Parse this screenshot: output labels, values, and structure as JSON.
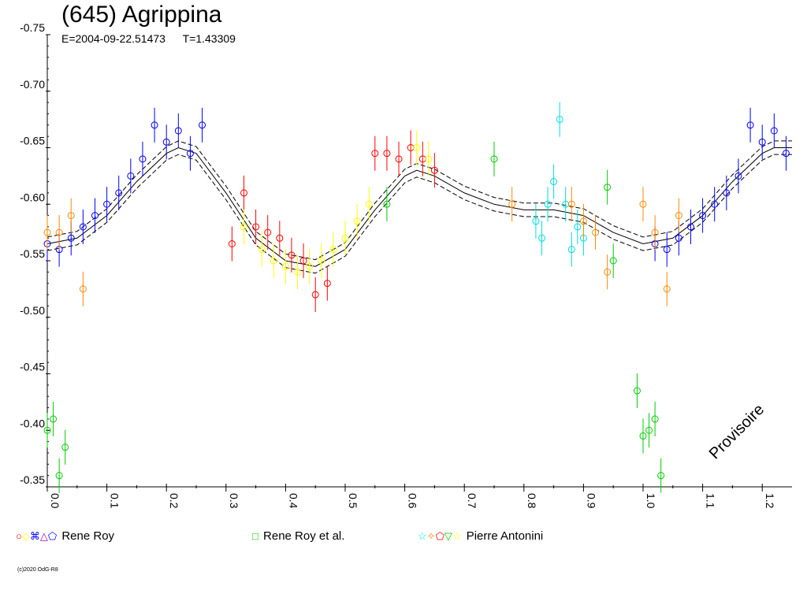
{
  "header": {
    "title": "(645) Agrippina",
    "epoch": "E=2004-09-22.51473",
    "period": "T=1.43309"
  },
  "watermark": "Provisoire",
  "copyright": "(c)2020 OdG-R8",
  "legend": [
    {
      "symbols": "○◇⌘△⬠",
      "label": "Rene Roy",
      "colors": [
        "#ff0000",
        "#ffff00",
        "#0000ff",
        "#a000a0",
        "#0000ff"
      ]
    },
    {
      "symbols": "□",
      "label": "Rene Roy et al.",
      "colors": [
        "#00cc00"
      ]
    },
    {
      "symbols": "☆✧⬠▽☆",
      "label": "Pierre Antonini",
      "colors": [
        "#00dddd",
        "#ff8800",
        "#ff0000",
        "#00cc00",
        "#ffff00"
      ]
    }
  ],
  "chart_data": {
    "type": "scatter",
    "title": "(645) Agrippina",
    "xlabel": "",
    "ylabel": "",
    "xlim": [
      0.0,
      1.25
    ],
    "ylim": [
      -0.35,
      -0.75
    ],
    "x_ticks": [
      "0.0",
      "0.1",
      "0.2",
      "0.3",
      "0.4",
      "0.5",
      "0.6",
      "0.7",
      "0.8",
      "0.9",
      "1.0",
      "1.1",
      "1.2"
    ],
    "y_ticks": [
      "-0.75",
      "-0.70",
      "-0.65",
      "-0.60",
      "-0.55",
      "-0.50",
      "-0.45",
      "-0.40",
      "-0.35"
    ],
    "fit_curve": {
      "x": [
        0.0,
        0.05,
        0.1,
        0.15,
        0.2,
        0.22,
        0.25,
        0.3,
        0.35,
        0.4,
        0.45,
        0.5,
        0.55,
        0.6,
        0.62,
        0.65,
        0.7,
        0.75,
        0.8,
        0.85,
        0.9,
        0.95,
        1.0,
        1.05,
        1.1,
        1.15,
        1.2,
        1.22,
        1.25
      ],
      "y": [
        -0.565,
        -0.57,
        -0.59,
        -0.62,
        -0.645,
        -0.65,
        -0.645,
        -0.61,
        -0.57,
        -0.55,
        -0.545,
        -0.56,
        -0.595,
        -0.625,
        -0.63,
        -0.625,
        -0.61,
        -0.6,
        -0.595,
        -0.595,
        -0.59,
        -0.575,
        -0.565,
        -0.57,
        -0.59,
        -0.62,
        -0.645,
        -0.65,
        -0.65
      ]
    },
    "series": [
      {
        "name": "Rene Roy",
        "color": "#0000ff",
        "x": [
          0.0,
          0.02,
          0.04,
          0.06,
          0.08,
          0.1,
          0.12,
          0.14,
          0.16,
          0.18,
          0.2,
          0.22,
          0.24,
          0.26,
          1.02,
          1.04,
          1.06,
          1.08,
          1.1,
          1.12,
          1.14,
          1.16,
          1.18,
          1.2,
          1.22,
          1.24
        ],
        "y": [
          -0.565,
          -0.56,
          -0.57,
          -0.58,
          -0.59,
          -0.6,
          -0.61,
          -0.625,
          -0.64,
          -0.67,
          -0.655,
          -0.665,
          -0.645,
          -0.67,
          -0.565,
          -0.56,
          -0.57,
          -0.58,
          -0.59,
          -0.6,
          -0.61,
          -0.625,
          -0.67,
          -0.655,
          -0.665,
          -0.645
        ]
      },
      {
        "name": "Rene Roy",
        "color": "#ff0000",
        "x": [
          0.31,
          0.33,
          0.35,
          0.37,
          0.39,
          0.41,
          0.43,
          0.45,
          0.47,
          0.55,
          0.57,
          0.59,
          0.61,
          0.63,
          0.65
        ],
        "y": [
          -0.565,
          -0.61,
          -0.58,
          -0.575,
          -0.57,
          -0.555,
          -0.55,
          -0.52,
          -0.53,
          -0.645,
          -0.645,
          -0.64,
          -0.65,
          -0.64,
          -0.63
        ]
      },
      {
        "name": "Rene Roy",
        "color": "#ffff00",
        "x": [
          0.33,
          0.36,
          0.38,
          0.4,
          0.42,
          0.44,
          0.46,
          0.48,
          0.5,
          0.52,
          0.54,
          0.62,
          0.64
        ],
        "y": [
          -0.58,
          -0.56,
          -0.55,
          -0.545,
          -0.54,
          -0.545,
          -0.55,
          -0.56,
          -0.57,
          -0.585,
          -0.6,
          -0.65,
          -0.64
        ]
      },
      {
        "name": "Rene Roy et al.",
        "color": "#00cc00",
        "x": [
          0.0,
          0.01,
          0.02,
          0.03,
          0.99,
          1.0,
          1.01,
          1.02,
          1.03,
          0.94,
          0.95,
          0.75,
          0.57
        ],
        "y": [
          -0.4,
          -0.41,
          -0.36,
          -0.385,
          -0.435,
          -0.395,
          -0.4,
          -0.41,
          -0.36,
          -0.615,
          -0.55,
          -0.64,
          -0.6
        ]
      },
      {
        "name": "Pierre Antonini",
        "color": "#00dddd",
        "x": [
          0.82,
          0.83,
          0.84,
          0.85,
          0.86,
          0.87,
          0.88,
          0.89,
          0.9
        ],
        "y": [
          -0.585,
          -0.57,
          -0.6,
          -0.62,
          -0.675,
          -0.6,
          -0.56,
          -0.58,
          -0.57
        ]
      },
      {
        "name": "Pierre Antonini",
        "color": "#ff8800",
        "x": [
          0.0,
          0.02,
          0.04,
          0.06,
          0.78,
          0.88,
          0.9,
          0.92,
          0.94,
          1.0,
          1.02,
          1.04,
          1.06
        ],
        "y": [
          -0.575,
          -0.575,
          -0.59,
          -0.525,
          -0.6,
          -0.6,
          -0.585,
          -0.575,
          -0.54,
          -0.6,
          -0.575,
          -0.525,
          -0.59
        ]
      }
    ]
  }
}
